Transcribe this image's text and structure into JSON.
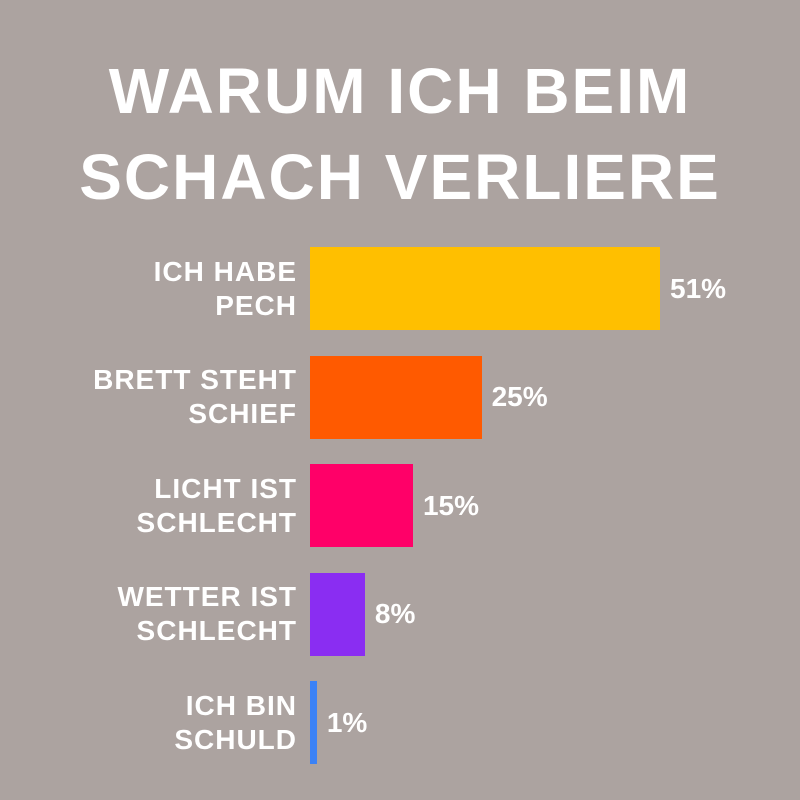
{
  "chart_data": {
    "type": "bar",
    "orientation": "horizontal",
    "title": "WARUM ICH BEIM\nSCHACH VERLIERE",
    "categories": [
      "ICH HABE\nPECH",
      "BRETT STEHT\nSCHIEF",
      "LICHT IST\nSCHLECHT",
      "WETTER IST\nSCHLECHT",
      "ICH BIN\nSCHULD"
    ],
    "values": [
      51,
      25,
      15,
      8,
      1
    ],
    "value_labels": [
      "51%",
      "25%",
      "15%",
      "8%",
      "1%"
    ],
    "colors": [
      "#ffbf00",
      "#ff5a00",
      "#ff0068",
      "#8a2df2",
      "#3b82f6"
    ]
  }
}
